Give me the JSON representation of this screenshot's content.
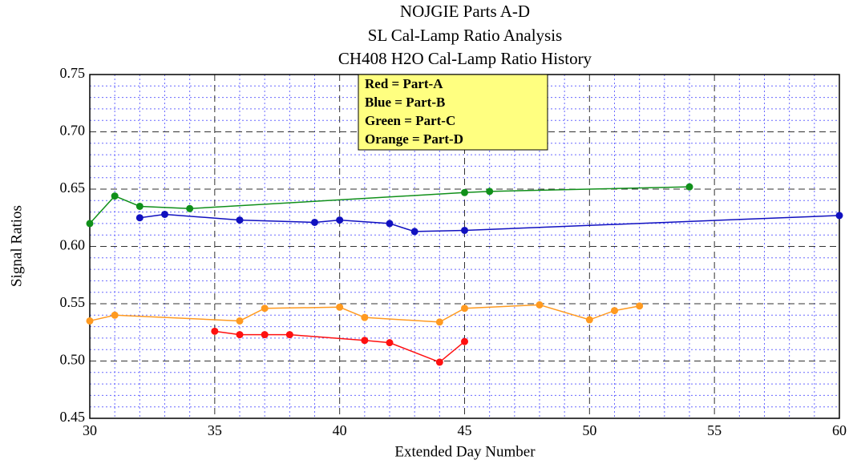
{
  "chart_data": {
    "type": "line",
    "title": [
      "NOJGIE Parts A-D",
      "SL Cal-Lamp Ratio Analysis",
      "CH408 H2O Cal-Lamp Ratio History"
    ],
    "x_label": "Extended Day Number",
    "y_label": "Signal Ratios",
    "xlim": [
      30,
      60
    ],
    "xticks": [
      30,
      35,
      40,
      45,
      50,
      55,
      60
    ],
    "ylim": [
      0.45,
      0.75
    ],
    "yticks": [
      0.45,
      {
        "value": 0.5,
        "label": "0.50"
      },
      0.55,
      {
        "value": 0.6,
        "label": "0.60"
      },
      0.65,
      {
        "value": 0.7,
        "label": "0.70"
      },
      0.75
    ],
    "grid": true,
    "legend_color": "#ffff80",
    "series": [
      {
        "name": "Red = Part-A",
        "color": "#ff1010",
        "x": [
          35,
          36,
          37,
          38,
          41,
          42,
          44,
          45
        ],
        "values": [
          0.526,
          0.523,
          0.523,
          0.523,
          0.518,
          0.516,
          0.499,
          0.517
        ]
      },
      {
        "name": "Blue = Part-B",
        "color": "#1010c0",
        "x": [
          32,
          33,
          36,
          39,
          40,
          42,
          43,
          45,
          60
        ],
        "values": [
          0.625,
          0.628,
          0.623,
          0.621,
          0.623,
          0.62,
          0.613,
          0.614,
          0.627
        ]
      },
      {
        "name": "Green = Part-C",
        "color": "#10901a",
        "x": [
          30,
          31,
          32,
          34,
          45,
          46,
          54
        ],
        "values": [
          0.62,
          0.644,
          0.635,
          0.633,
          0.647,
          0.648,
          0.652
        ]
      },
      {
        "name": "Orange = Part-D",
        "color": "#ff9a20",
        "x": [
          30,
          31,
          36,
          37,
          40,
          41,
          44,
          45,
          48,
          50,
          51,
          52
        ],
        "values": [
          0.535,
          0.54,
          0.535,
          0.546,
          0.547,
          0.538,
          0.534,
          0.546,
          0.549,
          0.536,
          0.544,
          0.548
        ]
      }
    ]
  }
}
